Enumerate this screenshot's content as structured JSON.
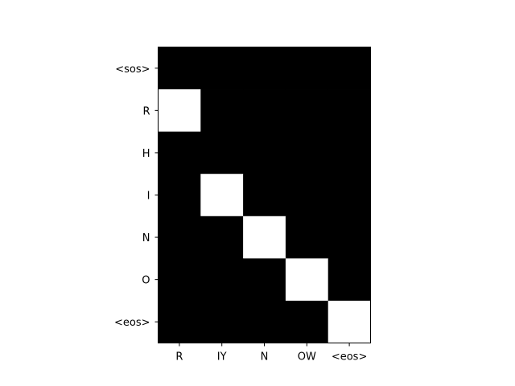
{
  "chart_data": {
    "type": "heatmap",
    "title": "",
    "xlabel": "",
    "ylabel": "",
    "x_categories": [
      "R",
      "IY",
      "N",
      "OW",
      "<eos>"
    ],
    "y_categories": [
      "<sos>",
      "R",
      "H",
      "I",
      "N",
      "O",
      "<eos>"
    ],
    "values": [
      [
        0,
        0,
        0,
        0,
        0
      ],
      [
        1,
        0,
        0,
        0,
        0
      ],
      [
        0,
        0,
        0,
        0,
        0
      ],
      [
        0,
        1,
        0,
        0,
        0
      ],
      [
        0,
        0,
        1,
        0,
        0
      ],
      [
        0,
        0,
        0,
        1,
        0
      ],
      [
        0,
        0,
        0,
        0,
        1
      ]
    ],
    "value_range": [
      0,
      1
    ],
    "colormap": {
      "low": "#000000",
      "high": "#ffffff"
    },
    "grid": false,
    "legend": "none"
  }
}
